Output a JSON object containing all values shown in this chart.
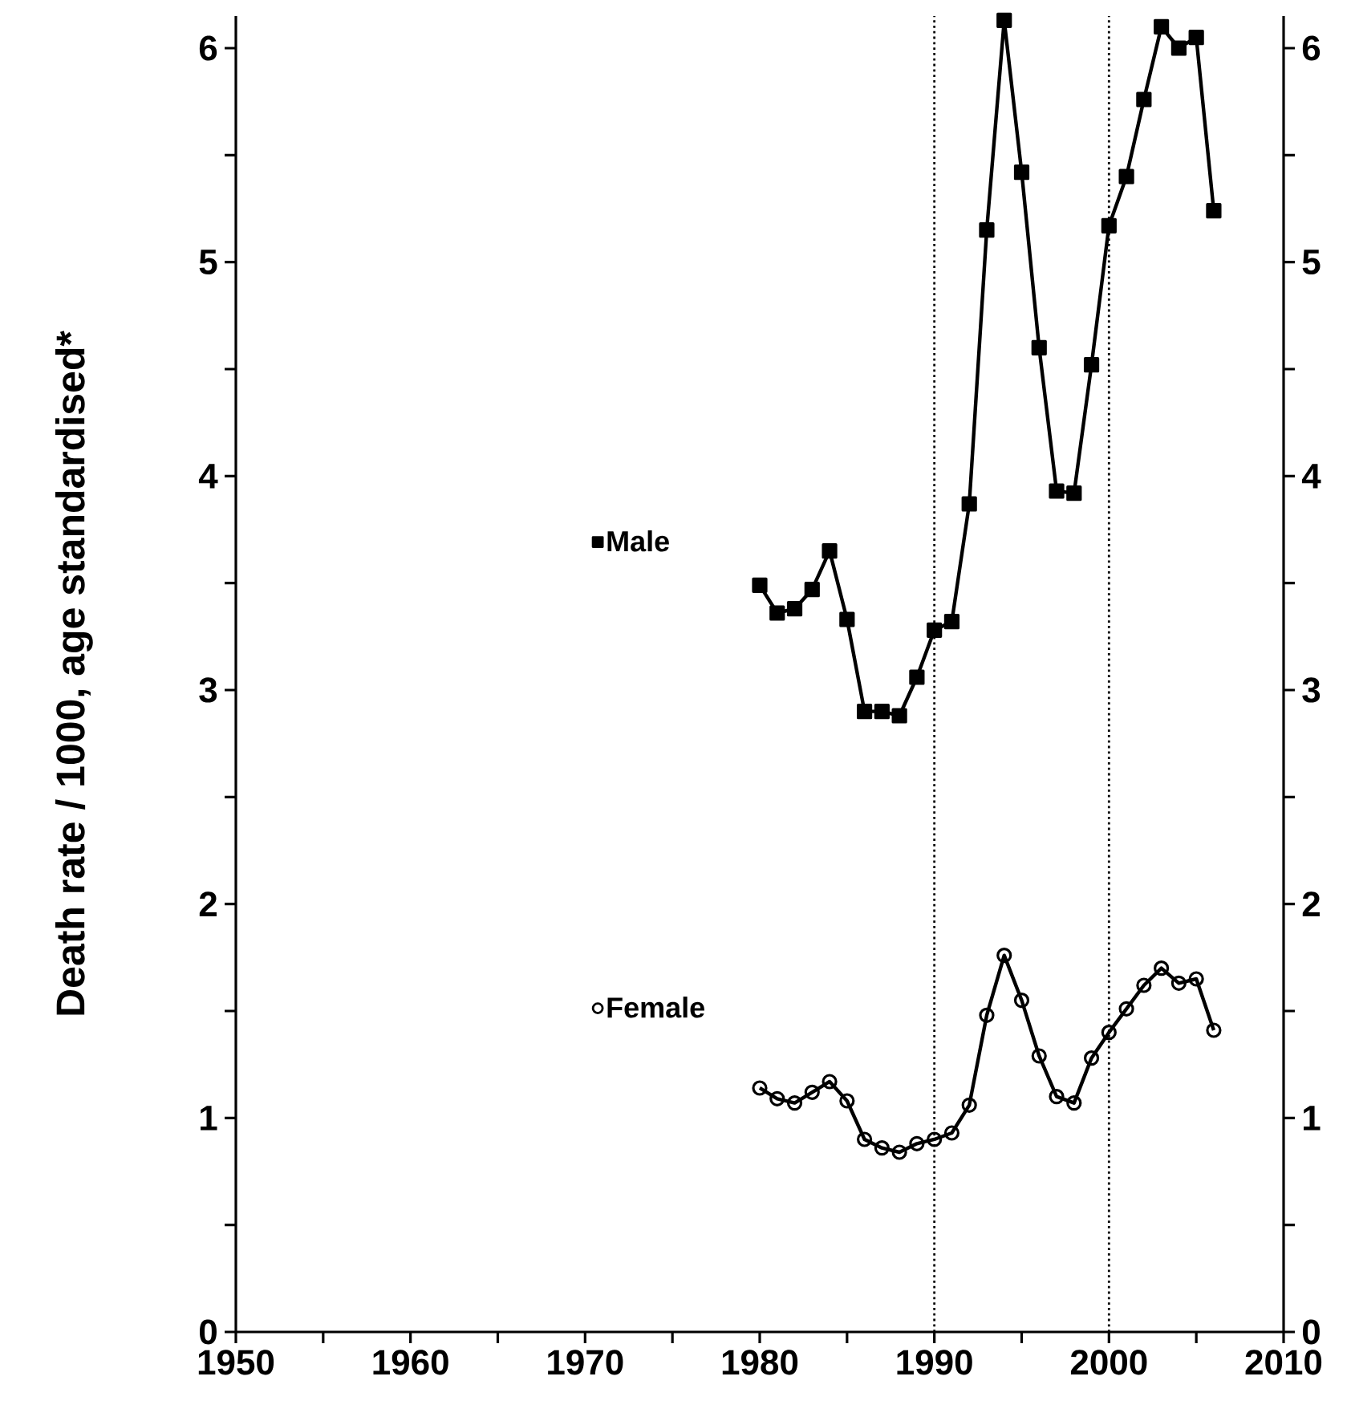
{
  "chart_data": {
    "type": "line",
    "ylabel": "Death rate / 1000, age standardised*",
    "x": [
      1980,
      1981,
      1982,
      1983,
      1984,
      1985,
      1986,
      1987,
      1988,
      1989,
      1990,
      1991,
      1992,
      1993,
      1994,
      1995,
      1996,
      1997,
      1998,
      1999,
      2000,
      2001,
      2002,
      2003,
      2004,
      2005,
      2006
    ],
    "series": [
      {
        "name": "Male",
        "color": "#000000",
        "marker": "square",
        "values": [
          3.49,
          3.36,
          3.38,
          3.47,
          3.65,
          3.33,
          2.9,
          2.9,
          2.88,
          3.06,
          3.28,
          3.32,
          3.87,
          5.15,
          6.13,
          5.42,
          4.6,
          3.93,
          3.92,
          4.52,
          5.17,
          5.4,
          5.76,
          6.1,
          6.0,
          6.05,
          5.24
        ]
      },
      {
        "name": "Female",
        "color": "#000000",
        "marker": "circle",
        "values": [
          1.14,
          1.09,
          1.07,
          1.12,
          1.17,
          1.08,
          0.9,
          0.86,
          0.84,
          0.88,
          0.9,
          0.93,
          1.06,
          1.48,
          1.76,
          1.55,
          1.29,
          1.1,
          1.07,
          1.28,
          1.4,
          1.51,
          1.62,
          1.7,
          1.63,
          1.65,
          1.41
        ]
      }
    ],
    "xlim": [
      1950,
      2010
    ],
    "xticks": [
      1950,
      {
        "value": 1955,
        "label": null
      },
      1960,
      {
        "value": 1965,
        "label": null
      },
      1970,
      {
        "value": 1975,
        "label": null
      },
      1980,
      {
        "value": 1985,
        "label": null
      },
      1990,
      {
        "value": 1995,
        "label": null
      },
      2000,
      {
        "value": 2005,
        "label": null
      },
      2010
    ],
    "ylim": [
      0,
      6.15
    ],
    "yticks": [
      0,
      {
        "value": 0.5,
        "label": null
      },
      1,
      {
        "value": 1.5,
        "label": null
      },
      2,
      {
        "value": 2.5,
        "label": null
      },
      3,
      {
        "value": 3.5,
        "label": null
      },
      4,
      {
        "value": 4.5,
        "label": null
      },
      5,
      {
        "value": 5.5,
        "label": null
      },
      6
    ],
    "y2lim": [
      0,
      6.15
    ],
    "y2ticks": [
      0,
      {
        "value": 0.5,
        "label": null
      },
      1,
      {
        "value": 1.5,
        "label": null
      },
      2,
      {
        "value": 2.5,
        "label": null
      },
      3,
      {
        "value": 3.5,
        "label": null
      },
      4,
      {
        "value": 4.5,
        "label": null
      },
      5,
      {
        "value": 5.5,
        "label": null
      },
      6
    ],
    "ref_lines": [
      {
        "axis": "x",
        "value": 1990,
        "line_style": "dotted",
        "color": "#000000"
      },
      {
        "axis": "x",
        "value": 2000,
        "line_style": "dotted",
        "color": "#000000"
      }
    ],
    "legend": "left",
    "grid": false,
    "line_style": "solid"
  }
}
